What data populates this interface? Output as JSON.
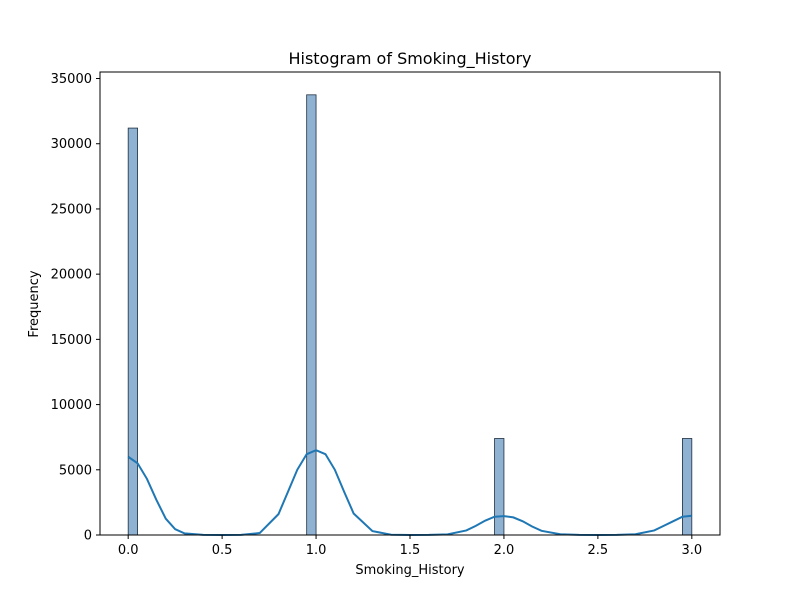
{
  "chart_data": {
    "type": "bar",
    "title": "Histogram of Smoking_History",
    "xlabel": "Smoking_History",
    "ylabel": "Frequency",
    "xlim": [
      -0.15,
      3.15
    ],
    "ylim": [
      0,
      35500
    ],
    "grid": false,
    "x_ticks": [
      "0.0",
      "0.5",
      "1.0",
      "1.5",
      "2.0",
      "2.5",
      "3.0"
    ],
    "y_ticks": [
      "0",
      "5000",
      "10000",
      "15000",
      "20000",
      "25000",
      "30000",
      "35000"
    ],
    "bin_width": 0.05,
    "series": [
      {
        "type": "histogram",
        "bins": [
          {
            "x0": 0.0,
            "x1": 0.05,
            "count": 31200
          },
          {
            "x0": 0.95,
            "x1": 1.0,
            "count": 33750
          },
          {
            "x0": 1.95,
            "x1": 2.0,
            "count": 7400
          },
          {
            "x0": 2.95,
            "x1": 3.0,
            "count": 7400
          }
        ]
      },
      {
        "type": "kde",
        "x": [
          0.0,
          0.05,
          0.1,
          0.15,
          0.2,
          0.25,
          0.3,
          0.4,
          0.5,
          0.6,
          0.7,
          0.8,
          0.85,
          0.9,
          0.95,
          1.0,
          1.05,
          1.1,
          1.15,
          1.2,
          1.3,
          1.4,
          1.5,
          1.6,
          1.7,
          1.8,
          1.85,
          1.9,
          1.95,
          2.0,
          2.05,
          2.1,
          2.15,
          2.2,
          2.3,
          2.4,
          2.5,
          2.6,
          2.7,
          2.8,
          2.85,
          2.9,
          2.95,
          3.0
        ],
        "y": [
          6000,
          5500,
          4300,
          2700,
          1250,
          450,
          120,
          10,
          0,
          10,
          150,
          1600,
          3300,
          5000,
          6200,
          6500,
          6200,
          5000,
          3300,
          1650,
          300,
          20,
          0,
          5,
          50,
          350,
          700,
          1100,
          1400,
          1450,
          1350,
          1050,
          650,
          320,
          60,
          5,
          0,
          5,
          60,
          350,
          700,
          1050,
          1400,
          1480
        ]
      }
    ],
    "colors": {
      "bar_fill": "#8fb1d2",
      "bar_edge": "#1f2f3f",
      "kde_line": "#1f77b4",
      "axis": "#000000"
    }
  }
}
